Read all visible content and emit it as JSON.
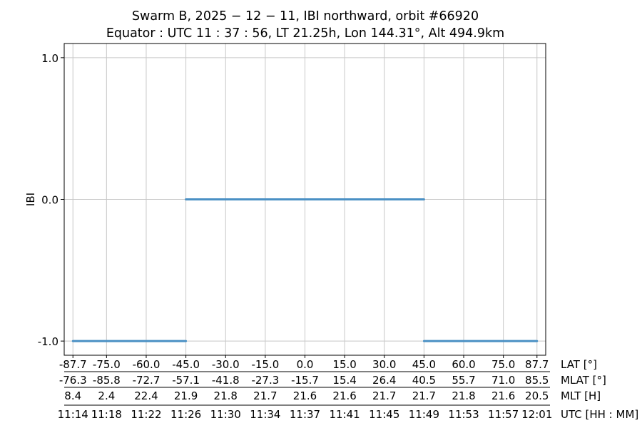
{
  "title_line1": "Swarm B,  2025 − 12 − 11,  IBI northward,  orbit #66920",
  "title_line2": "Equator :  UTC 11 : 37 : 56,  LT 21.25h,  Lon 144.31°,  Alt 494.9km",
  "chart_data": {
    "type": "line",
    "ylabel": "IBI",
    "ylim": [
      -1.1,
      1.1
    ],
    "yticks": [
      1.0,
      0.0,
      -1.0
    ],
    "ytick_labels": [
      "1.0",
      "0.0",
      "-1.0"
    ],
    "grid": true,
    "series": [
      {
        "color": "#4a90c4",
        "segments": [
          {
            "x": [
              -87.7,
              -45.0
            ],
            "y": [
              -1.0,
              -1.0
            ]
          },
          {
            "x": [
              -45.0,
              45.0
            ],
            "y": [
              0.0,
              0.0
            ]
          },
          {
            "x": [
              45.0,
              87.7
            ],
            "y": [
              -1.0,
              -1.0
            ]
          }
        ]
      }
    ],
    "x_tick_positions": [
      -87.7,
      -75.0,
      -60.0,
      -45.0,
      -30.0,
      -15.0,
      0.0,
      15.0,
      30.0,
      45.0,
      60.0,
      75.0,
      87.7
    ],
    "x_axis_rows": [
      {
        "label": "LAT [°]",
        "ticks": [
          "-87.7",
          "-75.0",
          "-60.0",
          "-45.0",
          "-30.0",
          "-15.0",
          "0.0",
          "15.0",
          "30.0",
          "45.0",
          "60.0",
          "75.0",
          "87.7"
        ]
      },
      {
        "label": "MLAT [°]",
        "ticks": [
          "-76.3",
          "-85.8",
          "-72.7",
          "-57.1",
          "-41.8",
          "-27.3",
          "-15.7",
          "15.4",
          "26.4",
          "40.5",
          "55.7",
          "71.0",
          "85.5"
        ]
      },
      {
        "label": "MLT [H]",
        "ticks": [
          "8.4",
          "2.4",
          "22.4",
          "21.9",
          "21.8",
          "21.7",
          "21.6",
          "21.6",
          "21.7",
          "21.7",
          "21.8",
          "21.6",
          "20.5"
        ]
      },
      {
        "label": "UTC [HH : MM]",
        "ticks": [
          "11:14",
          "11:18",
          "11:22",
          "11:26",
          "11:30",
          "11:34",
          "11:37",
          "11:41",
          "11:45",
          "11:49",
          "11:53",
          "11:57",
          "12:01"
        ]
      }
    ]
  }
}
